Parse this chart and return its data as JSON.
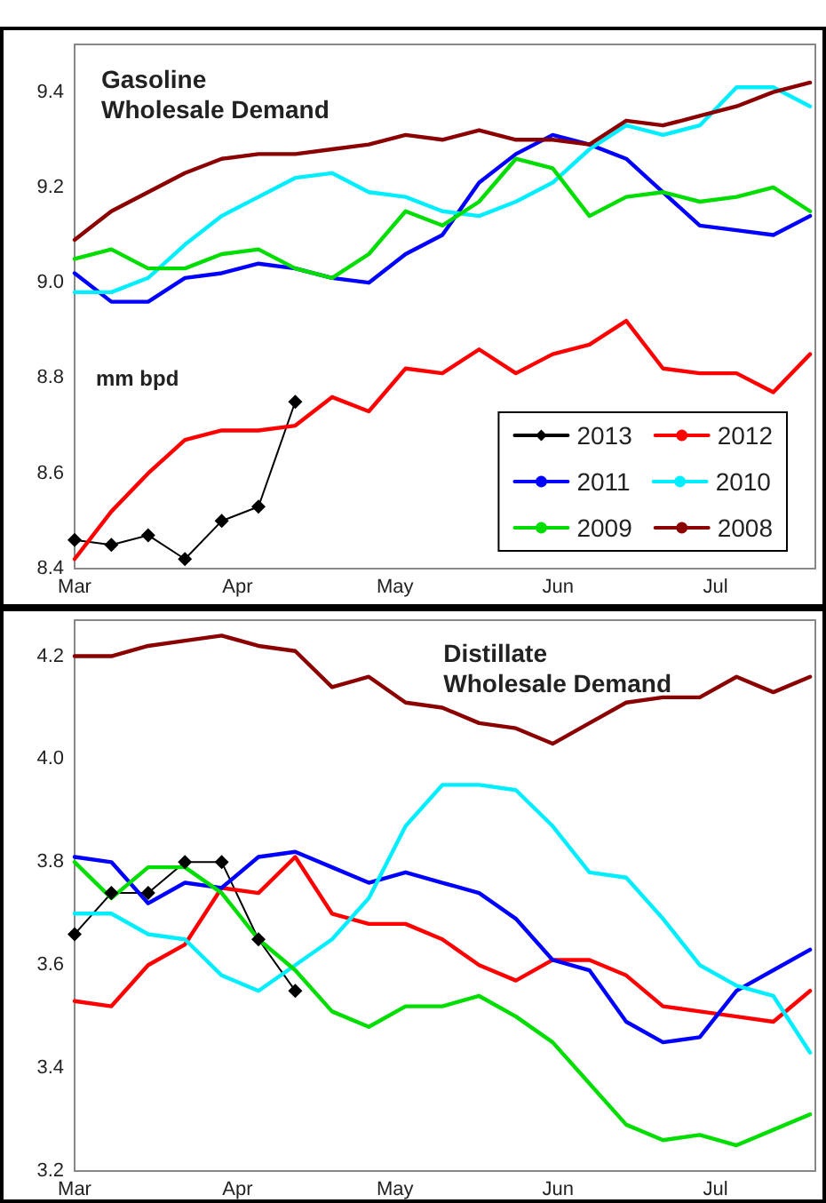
{
  "chart_data": [
    {
      "type": "line",
      "title": "Gasoline\nWholesale Demand",
      "annotations": [
        "mm bpd"
      ],
      "x": [
        "--03-01",
        "--03-08",
        "--03-15",
        "--03-22",
        "--03-29",
        "--04-05",
        "--04-12",
        "--04-19",
        "--04-26",
        "--05-03",
        "--05-10",
        "--05-17",
        "--05-24",
        "--05-31",
        "--06-07",
        "--06-14",
        "--06-21",
        "--06-28",
        "--07-05",
        "--07-12",
        "--07-19"
      ],
      "xlim": [
        "--03-01",
        "--07-20"
      ],
      "xticks": [
        {
          "value": "--03-01",
          "label": "Mar"
        },
        {
          "value": "--04-01",
          "label": "Apr"
        },
        {
          "value": "--05-01",
          "label": "May"
        },
        {
          "value": "--06-01",
          "label": "Jun"
        },
        {
          "value": "--07-01",
          "label": "Jul"
        }
      ],
      "ylim": [
        8.4,
        9.5
      ],
      "yticks": [
        8.4,
        8.6,
        8.8,
        {
          "value": 9,
          "label": "9.0"
        },
        9.2,
        9.4
      ],
      "grid": false,
      "legend": "bottom right",
      "line_style": "solid",
      "series": [
        {
          "name": "2013",
          "color": "#000000",
          "marker": "diamond",
          "values": [
            8.46,
            8.45,
            8.47,
            8.42,
            8.5,
            8.53,
            8.75,
            null,
            null,
            null,
            null,
            null,
            null,
            null,
            null,
            null,
            null,
            null,
            null,
            null,
            null
          ]
        },
        {
          "name": "2012",
          "color": "#ff0000",
          "marker": "none",
          "values": [
            8.42,
            8.52,
            8.6,
            8.67,
            8.69,
            8.69,
            8.7,
            8.76,
            8.73,
            8.82,
            8.81,
            8.86,
            8.81,
            8.85,
            8.87,
            8.92,
            8.82,
            8.81,
            8.81,
            8.77,
            8.85
          ]
        },
        {
          "name": "2011",
          "color": "#0000ff",
          "marker": "none",
          "values": [
            9.02,
            8.96,
            8.96,
            9.01,
            9.02,
            9.04,
            9.03,
            9.01,
            9.0,
            9.06,
            9.1,
            9.21,
            9.27,
            9.31,
            9.29,
            9.26,
            9.19,
            9.12,
            9.11,
            9.1,
            9.14
          ]
        },
        {
          "name": "2010",
          "color": "#00eeff",
          "marker": "none",
          "values": [
            8.98,
            8.98,
            9.01,
            9.08,
            9.14,
            9.18,
            9.22,
            9.23,
            9.19,
            9.18,
            9.15,
            9.14,
            9.17,
            9.21,
            9.28,
            9.33,
            9.31,
            9.33,
            9.41,
            9.41,
            9.37
          ]
        },
        {
          "name": "2009",
          "color": "#00dd00",
          "marker": "none",
          "values": [
            9.05,
            9.07,
            9.03,
            9.03,
            9.06,
            9.07,
            9.03,
            9.01,
            9.06,
            9.15,
            9.12,
            9.17,
            9.26,
            9.24,
            9.14,
            9.18,
            9.19,
            9.17,
            9.18,
            9.2,
            9.15
          ]
        },
        {
          "name": "2008",
          "color": "#8b0000",
          "marker": "none",
          "values": [
            9.09,
            9.15,
            9.19,
            9.23,
            9.26,
            9.27,
            9.27,
            9.28,
            9.29,
            9.31,
            9.3,
            9.32,
            9.3,
            9.3,
            9.29,
            9.34,
            9.33,
            9.35,
            9.37,
            9.4,
            9.42
          ]
        }
      ]
    },
    {
      "type": "line",
      "title": "Distillate\nWholesale Demand",
      "x": [
        "--03-01",
        "--03-08",
        "--03-15",
        "--03-22",
        "--03-29",
        "--04-05",
        "--04-12",
        "--04-19",
        "--04-26",
        "--05-03",
        "--05-10",
        "--05-17",
        "--05-24",
        "--05-31",
        "--06-07",
        "--06-14",
        "--06-21",
        "--06-28",
        "--07-05",
        "--07-12",
        "--07-19"
      ],
      "xlim": [
        "--03-01",
        "--07-20"
      ],
      "xticks": [
        {
          "value": "--03-01",
          "label": "Mar"
        },
        {
          "value": "--04-01",
          "label": "Apr"
        },
        {
          "value": "--05-01",
          "label": "May"
        },
        {
          "value": "--06-01",
          "label": "Jun"
        },
        {
          "value": "--07-01",
          "label": "Jul"
        }
      ],
      "ylim": [
        3.2,
        4.27
      ],
      "yticks": [
        3.2,
        3.4,
        3.6,
        3.8,
        {
          "value": 4,
          "label": "4.0"
        },
        4.2
      ],
      "grid": false,
      "line_style": "solid",
      "series": [
        {
          "color": "#000000",
          "marker": "diamond",
          "values": [
            3.66,
            3.74,
            3.74,
            3.8,
            3.8,
            3.65,
            3.55,
            null,
            null,
            null,
            null,
            null,
            null,
            null,
            null,
            null,
            null,
            null,
            null,
            null,
            null
          ]
        },
        {
          "color": "#ff0000",
          "marker": "none",
          "values": [
            3.53,
            3.52,
            3.6,
            3.64,
            3.75,
            3.74,
            3.81,
            3.7,
            3.68,
            3.68,
            3.65,
            3.6,
            3.57,
            3.61,
            3.61,
            3.58,
            3.52,
            3.51,
            3.5,
            3.49,
            3.55
          ]
        },
        {
          "color": "#0000ff",
          "marker": "none",
          "values": [
            3.81,
            3.8,
            3.72,
            3.76,
            3.75,
            3.81,
            3.82,
            3.79,
            3.76,
            3.78,
            3.76,
            3.74,
            3.69,
            3.61,
            3.59,
            3.49,
            3.45,
            3.46,
            3.55,
            3.59,
            3.63
          ]
        },
        {
          "color": "#00eeff",
          "marker": "none",
          "values": [
            3.7,
            3.7,
            3.66,
            3.65,
            3.58,
            3.55,
            3.6,
            3.65,
            3.73,
            3.87,
            3.95,
            3.95,
            3.94,
            3.87,
            3.78,
            3.77,
            3.69,
            3.6,
            3.56,
            3.54,
            3.43
          ]
        },
        {
          "color": "#00dd00",
          "marker": "none",
          "values": [
            3.8,
            3.73,
            3.79,
            3.79,
            3.74,
            3.65,
            3.59,
            3.51,
            3.48,
            3.52,
            3.52,
            3.54,
            3.5,
            3.45,
            3.37,
            3.29,
            3.26,
            3.27,
            3.25,
            3.28,
            3.31
          ]
        },
        {
          "color": "#8b0000",
          "marker": "none",
          "values": [
            4.2,
            4.2,
            4.22,
            4.23,
            4.24,
            4.22,
            4.21,
            4.14,
            4.16,
            4.11,
            4.1,
            4.07,
            4.06,
            4.03,
            4.07,
            4.11,
            4.12,
            4.12,
            4.16,
            4.13,
            4.16
          ]
        }
      ]
    }
  ]
}
